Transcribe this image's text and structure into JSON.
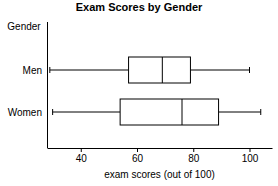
{
  "chart_data": {
    "type": "box",
    "title": "Exam Scores by Gender",
    "xlabel": "exam scores (out of 100)",
    "ylabel": "Gender",
    "orientation": "horizontal",
    "categories": [
      "Men",
      "Women"
    ],
    "min": [
      29,
      30
    ],
    "q1": [
      57,
      54
    ],
    "median": [
      69,
      76
    ],
    "q3": [
      79,
      89
    ],
    "max": [
      100,
      104
    ],
    "color": "#ffffff",
    "xlim": [
      28,
      108
    ],
    "xticks": [
      40,
      60,
      80,
      100
    ],
    "grid": false
  }
}
